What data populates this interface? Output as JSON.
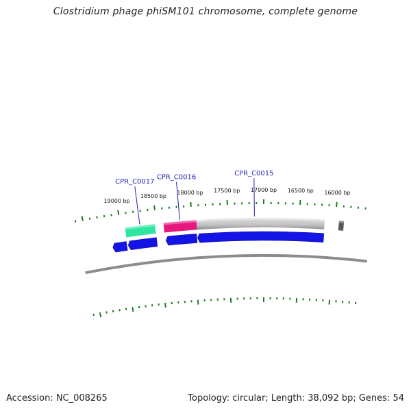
{
  "title": "Clostridium phage phiSM101 chromosome, complete genome",
  "footer": {
    "accession": "Accession: NC_008265",
    "summary": "Topology: circular; Length: 38,092 bp; Genes: 54"
  },
  "colors": {
    "backbone": "#8c8c8c",
    "tick": "#1e7a1e",
    "cds_forward": "#1414e6",
    "gene_labelled_1": "#2ee6a0",
    "gene_labelled_2": "#e6187d",
    "gene_gray": "#c2c2c2",
    "gene_dark": "#5a5a5a",
    "label_text": "#1f1fb0"
  },
  "bp_labels": [
    {
      "bp": 16000,
      "text": "16000 bp"
    },
    {
      "bp": 16500,
      "text": "16500 bp"
    },
    {
      "bp": 17000,
      "text": "17000 bp"
    },
    {
      "bp": 17500,
      "text": "17500 bp"
    },
    {
      "bp": 18000,
      "text": "18000 bp"
    },
    {
      "bp": 18500,
      "text": "18500 bp"
    },
    {
      "bp": 19000,
      "text": "19000 bp"
    }
  ],
  "features": [
    {
      "name": "CPR_C0015",
      "label": "CPR_C0015",
      "track": "outer",
      "start": 16150,
      "end": 17940,
      "color": "gene_gray"
    },
    {
      "name": "CPR_C0016",
      "label": "CPR_C0016",
      "track": "outer",
      "start": 17940,
      "end": 18400,
      "color": "gene_labelled_2"
    },
    {
      "name": "CPR_C0017",
      "label": "CPR_C0017",
      "track": "outer",
      "start": 18520,
      "end": 18940,
      "color": "gene_labelled_1"
    },
    {
      "name": "gene-dark",
      "label": "",
      "track": "outer",
      "start": 15880,
      "end": 15950,
      "color": "gene_dark"
    }
  ],
  "cds": [
    {
      "start": 16150,
      "end": 17940,
      "strand": "+"
    },
    {
      "start": 17950,
      "end": 18390,
      "strand": "+"
    },
    {
      "start": 18520,
      "end": 18930,
      "strand": "+"
    },
    {
      "start": 18950,
      "end": 19150,
      "strand": "+"
    }
  ]
}
